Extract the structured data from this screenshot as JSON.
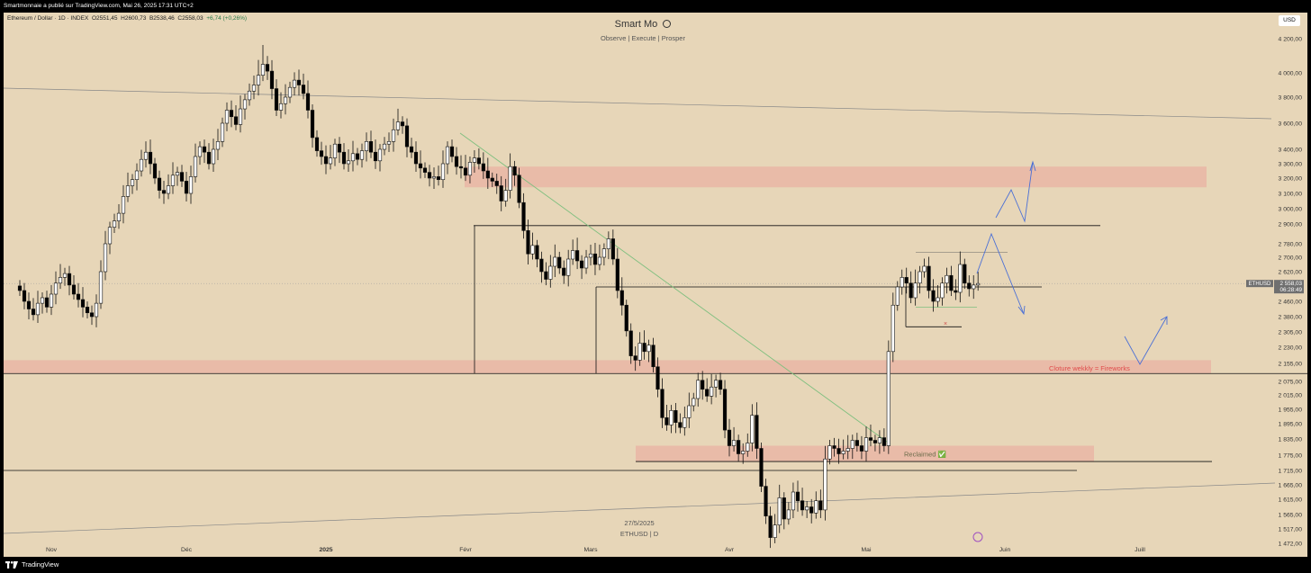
{
  "header": {
    "publisher_line": "Smartmonnaie a publié sur TradingView.com, Mai 26, 2025 17:31 UTC+2"
  },
  "symbol": {
    "name": "Ethereum / Dollar · 1D · INDEX",
    "open_label": "O",
    "open": "2551,45",
    "high_label": "H",
    "high": "2600,73",
    "low_label": "B",
    "low": "2538,46",
    "close_label": "C",
    "close": "2558,03",
    "change": "+6,74 (+0,26%)"
  },
  "title": {
    "main": "Smart Mo",
    "subtitle": "Observe |  Execute |  Prosper"
  },
  "currency_button": "USD",
  "watermark": {
    "date": "27/5/2025",
    "symbol": "ETHUSD | D"
  },
  "price_badge": {
    "symbol": "ETHUSD",
    "price": "2 558,03",
    "countdown": "06:28:49"
  },
  "annotations": {
    "weekly_close": "Cloture wekkly = Fireworks",
    "reclaimed": "Reclaimed ✅"
  },
  "footer": {
    "brand": "TradingView"
  },
  "colors": {
    "background": "#e7d6b8",
    "zone": "#e9b6a4",
    "weekly_label": "#e04b4b",
    "projection": "#4a6fd6",
    "trendline": "#7fbf7f",
    "candle_up": "#ffffff",
    "candle_down": "#000000"
  },
  "chart_data": {
    "type": "candlestick",
    "y_axis_labels": [
      "4 200,00",
      "4 000,00",
      "3 800,00",
      "3 600,00",
      "3 400,00",
      "3 300,00",
      "3 200,00",
      "3 100,00",
      "3 000,00",
      "2 900,00",
      "2 780,00",
      "2 700,00",
      "2 620,00",
      "2 540,00",
      "2 460,00",
      "2 380,00",
      "2 305,00",
      "2 230,00",
      "2 155,00",
      "2 075,00",
      "2 015,00",
      "1 955,00",
      "1 895,00",
      "1 835,00",
      "1 775,00",
      "1 715,00",
      "1 665,00",
      "1 615,00",
      "1 565,00",
      "1 517,00",
      "1 472,00"
    ],
    "x_axis_labels": [
      {
        "label": "Nov",
        "date": "2024-11-01"
      },
      {
        "label": "Déc",
        "date": "2024-12-01"
      },
      {
        "label": "2025",
        "date": "2025-01-01"
      },
      {
        "label": "Févr",
        "date": "2025-02-01"
      },
      {
        "label": "Mars",
        "date": "2025-03-01"
      },
      {
        "label": "Avr",
        "date": "2025-04-01"
      },
      {
        "label": "Mai",
        "date": "2025-05-01"
      },
      {
        "label": "Juin",
        "date": "2025-06-01"
      },
      {
        "label": "Juill",
        "date": "2025-07-01"
      }
    ],
    "y_range": [
      1440,
      4300
    ],
    "last_close": 2558.03,
    "zones": [
      {
        "from": 3140,
        "to": 3280
      },
      {
        "from": 2110,
        "to": 2170
      },
      {
        "from": 1750,
        "to": 1810
      }
    ],
    "levels": [
      2890,
      2540,
      2110,
      1750,
      1715
    ],
    "series": [
      {
        "name": "Ethereum / Dollar · 1D · INDEX",
        "closes": [
          2520,
          2460,
          2420,
          2390,
          2450,
          2480,
          2430,
          2500,
          2560,
          2590,
          2610,
          2550,
          2500,
          2470,
          2430,
          2400,
          2380,
          2450,
          2620,
          2780,
          2880,
          2920,
          2970,
          3080,
          3150,
          3190,
          3250,
          3330,
          3380,
          3300,
          3200,
          3120,
          3100,
          3150,
          3220,
          3240,
          3180,
          3100,
          3210,
          3350,
          3420,
          3380,
          3300,
          3400,
          3460,
          3600,
          3700,
          3650,
          3590,
          3710,
          3780,
          3850,
          3900,
          3980,
          4050,
          4010,
          3870,
          3700,
          3750,
          3800,
          3880,
          3940,
          3900,
          3830,
          3700,
          3490,
          3390,
          3350,
          3300,
          3340,
          3440,
          3380,
          3300,
          3320,
          3370,
          3330,
          3390,
          3460,
          3380,
          3320,
          3400,
          3440,
          3460,
          3550,
          3610,
          3580,
          3420,
          3380,
          3300,
          3270,
          3240,
          3200,
          3210,
          3190,
          3300,
          3420,
          3350,
          3280,
          3270,
          3220,
          3310,
          3340,
          3300,
          3250,
          3200,
          3180,
          3150,
          3050,
          3120,
          3280,
          3220,
          3040,
          2860,
          2720,
          2770,
          2690,
          2620,
          2580,
          2650,
          2700,
          2640,
          2600,
          2690,
          2740,
          2680,
          2640,
          2700,
          2720,
          2660,
          2700,
          2750,
          2810,
          2690,
          2520,
          2440,
          2310,
          2190,
          2170,
          2250,
          2210,
          2240,
          2140,
          2040,
          1920,
          1890,
          1950,
          1900,
          1880,
          1920,
          1970,
          2000,
          2080,
          2040,
          2010,
          2050,
          2080,
          2040,
          1870,
          1810,
          1830,
          1780,
          1790,
          1820,
          1930,
          1800,
          1660,
          1560,
          1490,
          1530,
          1620,
          1550,
          1580,
          1640,
          1610,
          1580,
          1590,
          1570,
          1610,
          1580,
          1760,
          1810,
          1800,
          1780,
          1790,
          1800,
          1830,
          1810,
          1790,
          1840,
          1830,
          1820,
          1840,
          1810,
          2210,
          2440,
          2540,
          2590,
          2560,
          2480,
          2560,
          2620,
          2650,
          2520,
          2460,
          2480,
          2560,
          2600,
          2520,
          2510,
          2660,
          2560,
          2530,
          2550,
          2558.03
        ]
      }
    ]
  }
}
